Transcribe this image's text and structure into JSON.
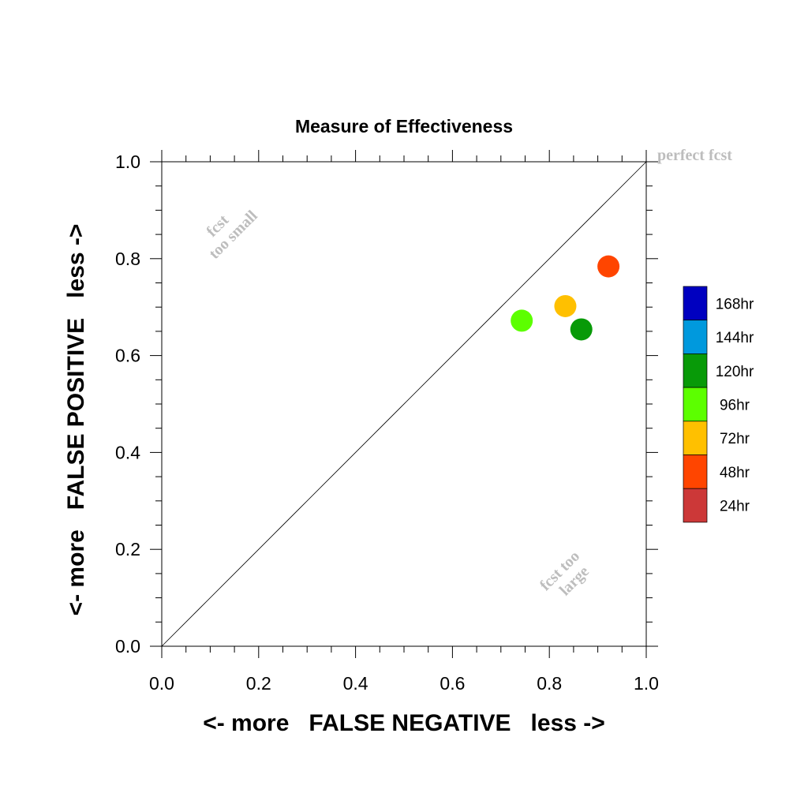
{
  "chart_data": {
    "type": "scatter",
    "title": "Measure of Effectiveness",
    "xlabel": "<- more   FALSE NEGATIVE   less ->",
    "ylabel": "<- more   FALSE POSITIVE   less ->",
    "xlim": [
      0.0,
      1.0
    ],
    "ylim": [
      0.0,
      1.0
    ],
    "xticks": [
      "0.0",
      "0.2",
      "0.4",
      "0.6",
      "0.8",
      "1.0"
    ],
    "yticks": [
      "0.0",
      "0.2",
      "0.4",
      "0.6",
      "0.8",
      "1.0"
    ],
    "grid": false,
    "reference_line": "diagonal",
    "annotations": {
      "perfect": "perfect fcst",
      "small_line1": "fcst",
      "small_line2": "too small",
      "large_line1": "fcst too",
      "large_line2": "large"
    },
    "points": [
      {
        "x": 0.922,
        "y": 0.784,
        "color": "#ff4500"
      },
      {
        "x": 0.833,
        "y": 0.702,
        "color": "#ffc000"
      },
      {
        "x": 0.743,
        "y": 0.672,
        "color": "#5cff00"
      },
      {
        "x": 0.866,
        "y": 0.654,
        "color": "#089a08"
      }
    ],
    "legend": {
      "position": "right",
      "entries": [
        {
          "label": "168hr",
          "color": "#0000c0"
        },
        {
          "label": "144hr",
          "color": "#0099dd"
        },
        {
          "label": "120hr",
          "color": "#089a08"
        },
        {
          "label": "96hr",
          "color": "#5cff00"
        },
        {
          "label": "72hr",
          "color": "#ffc000"
        },
        {
          "label": "48hr",
          "color": "#ff4500"
        },
        {
          "label": "24hr",
          "color": "#cc3838"
        }
      ]
    }
  }
}
